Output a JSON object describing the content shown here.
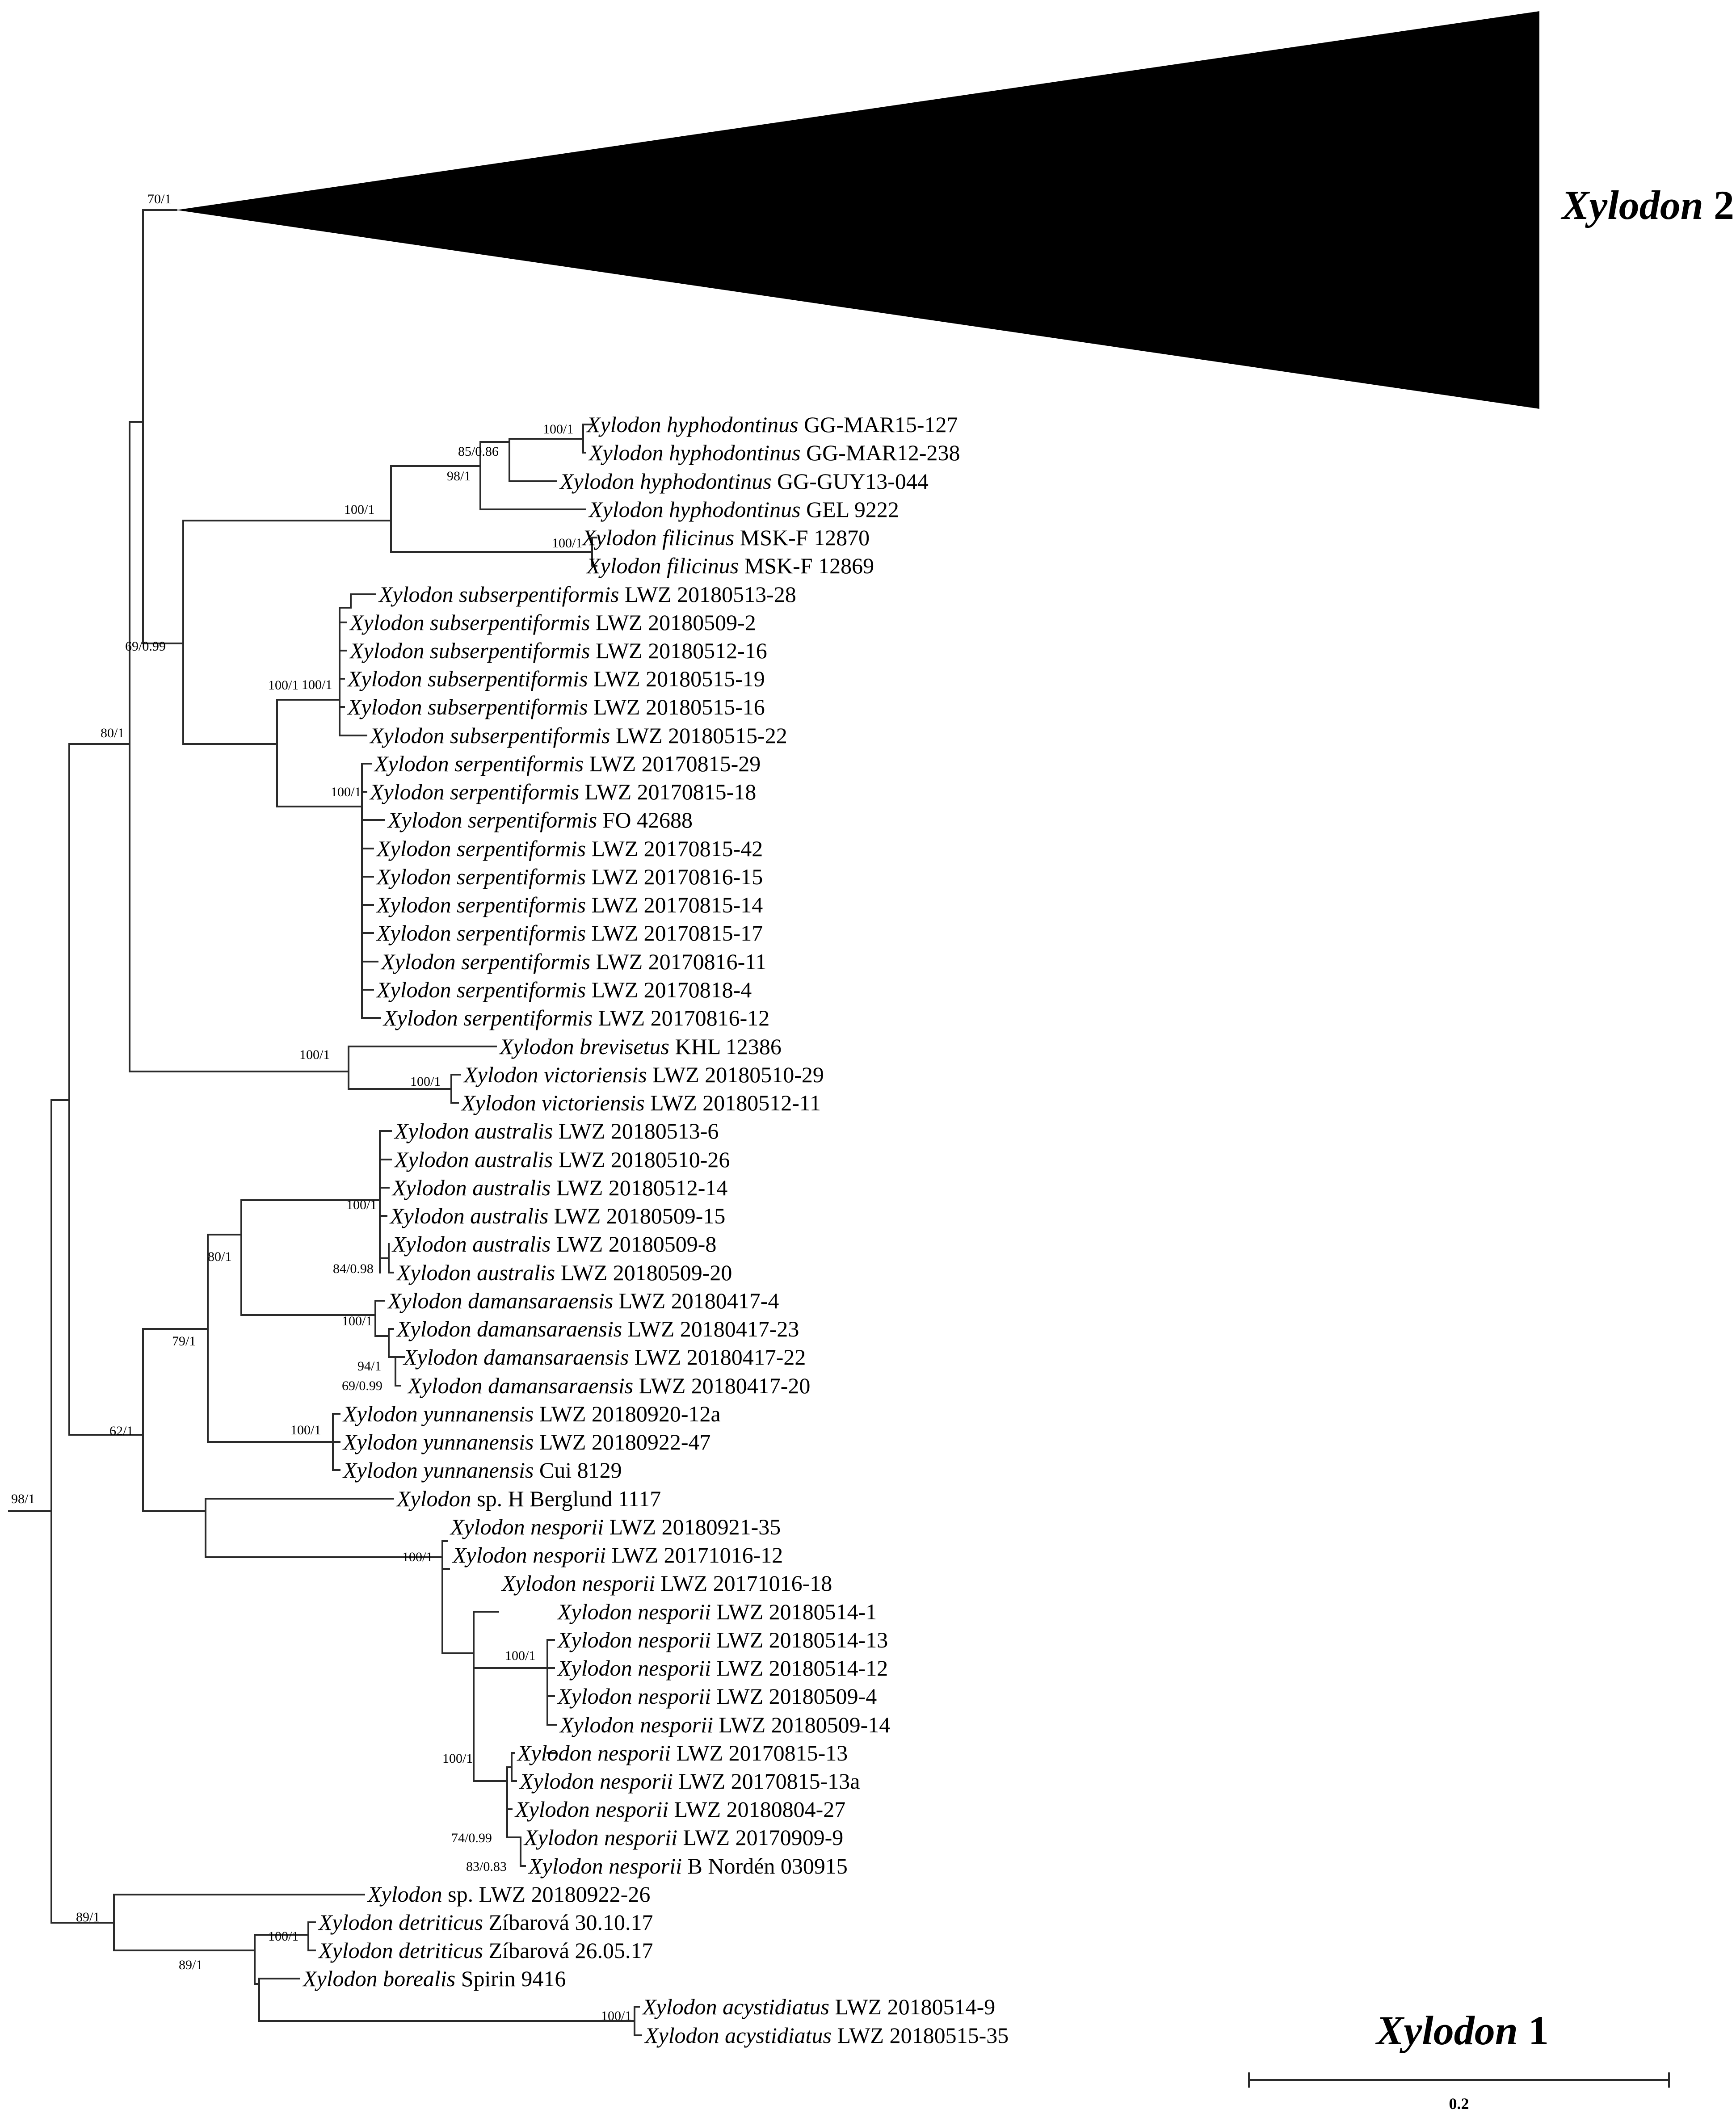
{
  "clade_labels": {
    "top_genus": "Xylodon",
    "top_num": " 2",
    "bottom_genus": "Xylodon",
    "bottom_num": " 1"
  },
  "scale": {
    "label": "0.2"
  },
  "supports": [
    "70/1",
    "100/1",
    "85/0.86",
    "98/1",
    "100/1",
    "100/1",
    "69/0.99",
    "100/1",
    "100/1",
    "100/1",
    "80/1",
    "100/1",
    "100/1",
    "100/1",
    "84/0.98",
    "80/1",
    "100/1",
    "94/1",
    "69/0.99",
    "79/1",
    "100/1",
    "62/1",
    "100/1",
    "100/1",
    "100/1",
    "74/0.99",
    "83/0.83",
    "98/1",
    "89/1",
    "100/1",
    "89/1",
    "100/1"
  ],
  "taxa": [
    {
      "genus": "Xylodon",
      "species": "hyphodontinus",
      "voucher": "GG-MAR15-127"
    },
    {
      "genus": "Xylodon",
      "species": "hyphodontinus",
      "voucher": "GG-MAR12-238"
    },
    {
      "genus": "Xylodon",
      "species": "hyphodontinus",
      "voucher": "GG-GUY13-044"
    },
    {
      "genus": "Xylodon",
      "species": "hyphodontinus",
      "voucher": "GEL 9222"
    },
    {
      "genus": "Xylodon",
      "species": "filicinus",
      "voucher": "MSK-F 12870"
    },
    {
      "genus": "Xylodon",
      "species": "filicinus",
      "voucher": "MSK-F 12869"
    },
    {
      "genus": "Xylodon",
      "species": "subserpentiformis",
      "voucher": "LWZ 20180513-28"
    },
    {
      "genus": "Xylodon",
      "species": "subserpentiformis",
      "voucher": "LWZ 20180509-2"
    },
    {
      "genus": "Xylodon",
      "species": "subserpentiformis",
      "voucher": "LWZ 20180512-16"
    },
    {
      "genus": "Xylodon",
      "species": "subserpentiformis",
      "voucher": "LWZ 20180515-19"
    },
    {
      "genus": "Xylodon",
      "species": "subserpentiformis",
      "voucher": "LWZ 20180515-16"
    },
    {
      "genus": "Xylodon",
      "species": "subserpentiformis",
      "voucher": "LWZ 20180515-22"
    },
    {
      "genus": "Xylodon",
      "species": "serpentiformis",
      "voucher": "LWZ 20170815-29"
    },
    {
      "genus": "Xylodon",
      "species": "serpentiformis",
      "voucher": "LWZ 20170815-18"
    },
    {
      "genus": "Xylodon",
      "species": "serpentiformis",
      "voucher": "FO 42688"
    },
    {
      "genus": "Xylodon",
      "species": "serpentiformis",
      "voucher": "LWZ 20170815-42"
    },
    {
      "genus": "Xylodon",
      "species": "serpentiformis",
      "voucher": "LWZ 20170816-15"
    },
    {
      "genus": "Xylodon",
      "species": "serpentiformis",
      "voucher": "LWZ 20170815-14"
    },
    {
      "genus": "Xylodon",
      "species": "serpentiformis",
      "voucher": "LWZ 20170815-17"
    },
    {
      "genus": "Xylodon",
      "species": "serpentiformis",
      "voucher": "LWZ 20170816-11"
    },
    {
      "genus": "Xylodon",
      "species": "serpentiformis",
      "voucher": "LWZ 20170818-4"
    },
    {
      "genus": "Xylodon",
      "species": "serpentiformis",
      "voucher": "LWZ 20170816-12"
    },
    {
      "genus": "Xylodon",
      "species": "brevisetus",
      "voucher": "KHL 12386"
    },
    {
      "genus": "Xylodon",
      "species": "victoriensis",
      "voucher": "LWZ 20180510-29"
    },
    {
      "genus": "Xylodon",
      "species": "victoriensis",
      "voucher": "LWZ 20180512-11"
    },
    {
      "genus": "Xylodon",
      "species": "australis",
      "voucher": "LWZ 20180513-6"
    },
    {
      "genus": "Xylodon",
      "species": "australis",
      "voucher": "LWZ 20180510-26"
    },
    {
      "genus": "Xylodon",
      "species": "australis",
      "voucher": "LWZ 20180512-14"
    },
    {
      "genus": "Xylodon",
      "species": "australis",
      "voucher": "LWZ 20180509-15"
    },
    {
      "genus": "Xylodon",
      "species": "australis",
      "voucher": "LWZ 20180509-8"
    },
    {
      "genus": "Xylodon",
      "species": "australis",
      "voucher": "LWZ 20180509-20"
    },
    {
      "genus": "Xylodon",
      "species": "damansaraensis",
      "voucher": "LWZ 20180417-4"
    },
    {
      "genus": "Xylodon",
      "species": "damansaraensis",
      "voucher": "LWZ 20180417-23"
    },
    {
      "genus": "Xylodon",
      "species": "damansaraensis",
      "voucher": "LWZ 20180417-22"
    },
    {
      "genus": "Xylodon",
      "species": "damansaraensis",
      "voucher": "LWZ 20180417-20"
    },
    {
      "genus": "Xylodon",
      "species": "yunnanensis",
      "voucher": "LWZ 20180920-12a"
    },
    {
      "genus": "Xylodon",
      "species": "yunnanensis",
      "voucher": "LWZ 20180922-47"
    },
    {
      "genus": "Xylodon",
      "species": "yunnanensis",
      "voucher": "Cui 8129"
    },
    {
      "genus": "Xylodon",
      "species": "",
      "sp": "sp.",
      "voucher": "H Berglund 1117"
    },
    {
      "genus": "Xylodon",
      "species": "nesporii",
      "voucher": "LWZ 20180921-35"
    },
    {
      "genus": "Xylodon",
      "species": "nesporii",
      "voucher": "LWZ 20171016-12"
    },
    {
      "genus": "Xylodon",
      "species": "nesporii",
      "voucher": "LWZ 20171016-18"
    },
    {
      "genus": "Xylodon",
      "species": "nesporii",
      "voucher": "LWZ 20180514-1"
    },
    {
      "genus": "Xylodon",
      "species": "nesporii",
      "voucher": "LWZ 20180514-13"
    },
    {
      "genus": "Xylodon",
      "species": "nesporii",
      "voucher": "LWZ 20180514-12"
    },
    {
      "genus": "Xylodon",
      "species": "nesporii",
      "voucher": "LWZ 20180509-4"
    },
    {
      "genus": "Xylodon",
      "species": "nesporii",
      "voucher": "LWZ 20180509-14"
    },
    {
      "genus": "Xylodon",
      "species": "nesporii",
      "voucher": "LWZ 20170815-13"
    },
    {
      "genus": "Xylodon",
      "species": "nesporii",
      "voucher": "LWZ 20170815-13a"
    },
    {
      "genus": "Xylodon",
      "species": "nesporii",
      "voucher": "LWZ 20180804-27"
    },
    {
      "genus": "Xylodon",
      "species": "nesporii",
      "voucher": "LWZ 20170909-9"
    },
    {
      "genus": "Xylodon",
      "species": "nesporii",
      "voucher": "B Nordén 030915"
    },
    {
      "genus": "Xylodon",
      "species": "",
      "sp": "sp.",
      "voucher": "LWZ 20180922-26"
    },
    {
      "genus": "Xylodon",
      "species": "detriticus",
      "voucher": "Zíbarová 30.10.17"
    },
    {
      "genus": "Xylodon",
      "species": "detriticus",
      "voucher": "Zíbarová 26.05.17"
    },
    {
      "genus": "Xylodon",
      "species": "borealis",
      "voucher": "Spirin 9416"
    },
    {
      "genus": "Xylodon",
      "species": "acystidiatus",
      "voucher": "LWZ 20180514-9"
    },
    {
      "genus": "Xylodon",
      "species": "acystidiatus",
      "voucher": "LWZ 20180515-35"
    }
  ]
}
